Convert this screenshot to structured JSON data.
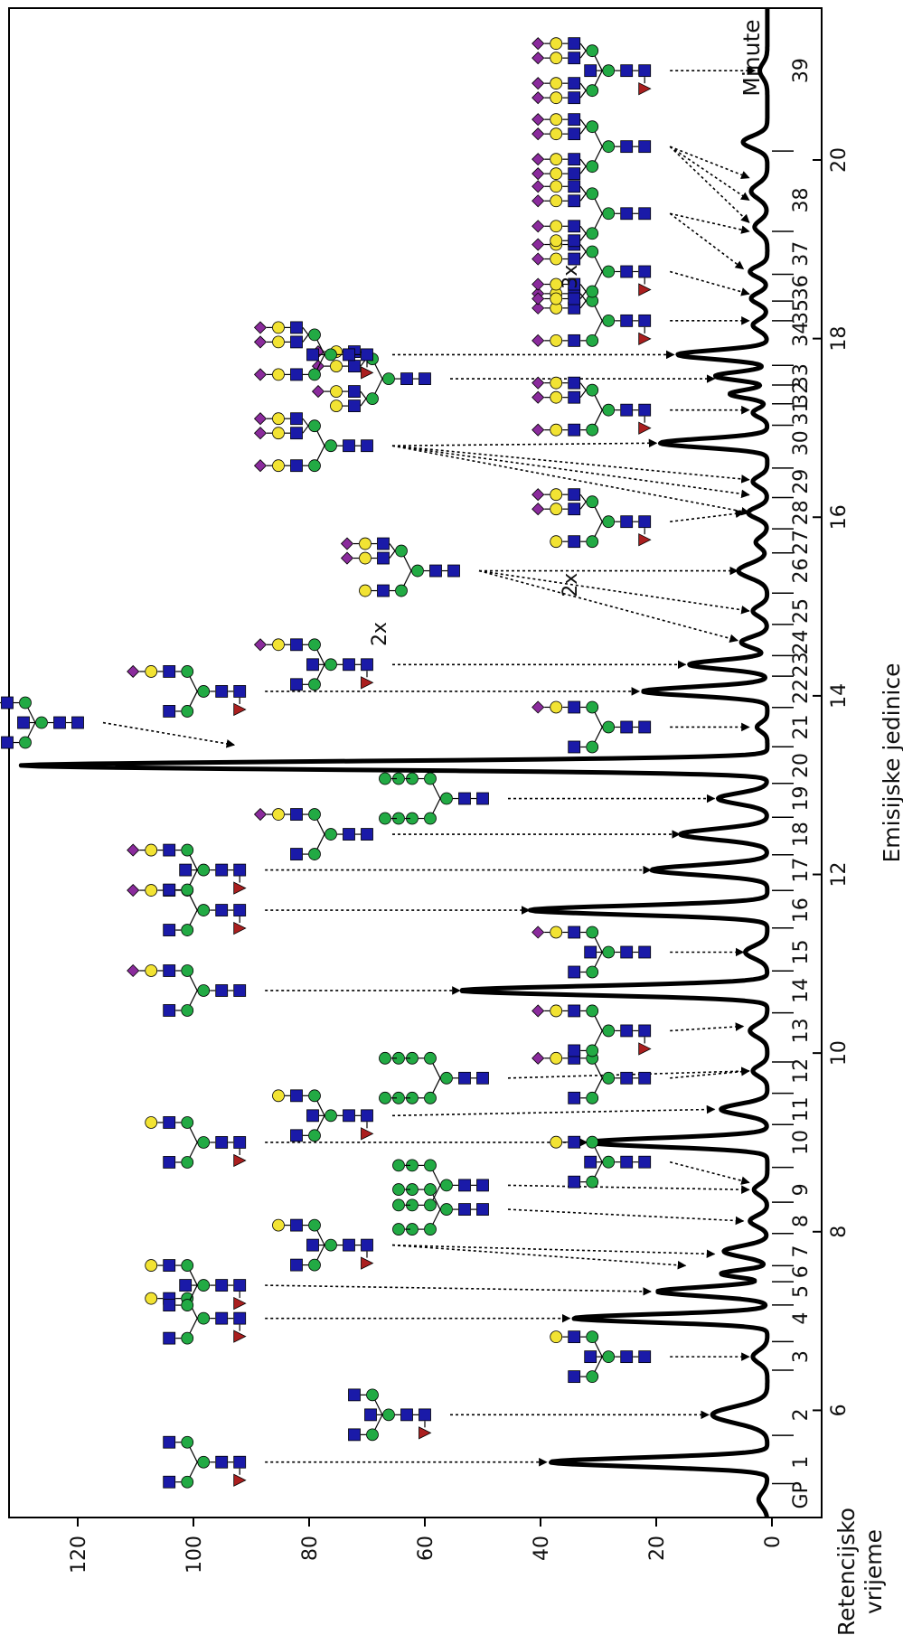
{
  "chart_data": {
    "type": "line",
    "ylabel": "Emisijske jedinice",
    "xlabel_lines": [
      "Retencijsko",
      "vrijeme"
    ],
    "x_unit_label": "Minute",
    "xlim": [
      4.8,
      21.7
    ],
    "ylim": [
      0,
      130
    ],
    "x_ticks": [
      6,
      8,
      10,
      12,
      14,
      16,
      18,
      20
    ],
    "y_ticks": [
      0,
      20,
      40,
      60,
      80,
      100,
      120
    ],
    "grid": false,
    "legend": "none",
    "line_color": "#000000",
    "peak_labels": [
      "GP",
      "1",
      "2",
      "3",
      "4",
      "5",
      "6",
      "7",
      "8",
      "9",
      "10",
      "11",
      "12",
      "13",
      "14",
      "15",
      "16",
      "17",
      "18",
      "19",
      "20",
      "21",
      "22",
      "23",
      "24",
      "25",
      "26",
      "27",
      "28",
      "29",
      "30",
      "31",
      "32",
      "33",
      "34",
      "35",
      "36",
      "37",
      "38",
      "39"
    ],
    "peak_label_x": [
      5.05,
      5.42,
      5.95,
      6.6,
      7.03,
      7.33,
      7.55,
      7.78,
      8.12,
      8.47,
      9.0,
      9.37,
      9.8,
      10.25,
      10.7,
      11.13,
      11.6,
      12.05,
      12.45,
      12.85,
      13.22,
      13.65,
      14.05,
      14.35,
      14.6,
      14.95,
      15.4,
      15.72,
      16.05,
      16.4,
      16.83,
      17.17,
      17.38,
      17.58,
      18.05,
      18.3,
      18.57,
      18.95,
      19.55,
      21.0
    ],
    "boundaries_x": [
      5.18,
      5.72,
      6.45,
      6.77,
      7.18,
      7.44,
      7.62,
      7.98,
      8.33,
      8.72,
      9.2,
      9.55,
      9.9,
      10.45,
      10.92,
      11.4,
      11.82,
      12.22,
      12.64,
      13.02,
      13.43,
      13.87,
      14.22,
      14.45,
      14.8,
      15.15,
      15.6,
      15.87,
      16.22,
      16.55,
      17.03,
      17.27,
      17.48,
      17.7,
      18.2,
      18.42,
      18.72,
      19.2,
      20.1
    ],
    "peaks": [
      {
        "x": 5.0,
        "y": 1.5,
        "w": 0.08
      },
      {
        "x": 5.42,
        "y": 37.5,
        "w": 0.05
      },
      {
        "x": 5.95,
        "y": 9.5,
        "w": 0.09
      },
      {
        "x": 6.6,
        "y": 2.5,
        "w": 0.07
      },
      {
        "x": 7.03,
        "y": 33.5,
        "w": 0.045
      },
      {
        "x": 7.33,
        "y": 19.0,
        "w": 0.05
      },
      {
        "x": 7.53,
        "y": 8.0,
        "w": 0.04
      },
      {
        "x": 7.78,
        "y": 7.5,
        "w": 0.06
      },
      {
        "x": 8.12,
        "y": 3.0,
        "w": 0.06
      },
      {
        "x": 8.47,
        "y": 2.3,
        "w": 0.06
      },
      {
        "x": 9.0,
        "y": 31.0,
        "w": 0.05
      },
      {
        "x": 9.37,
        "y": 8.0,
        "w": 0.06
      },
      {
        "x": 9.8,
        "y": 2.5,
        "w": 0.06
      },
      {
        "x": 10.25,
        "y": 3.0,
        "w": 0.07
      },
      {
        "x": 10.7,
        "y": 53.0,
        "w": 0.05
      },
      {
        "x": 11.13,
        "y": 3.8,
        "w": 0.07
      },
      {
        "x": 11.6,
        "y": 41.0,
        "w": 0.05
      },
      {
        "x": 12.05,
        "y": 20.0,
        "w": 0.055
      },
      {
        "x": 12.45,
        "y": 15.0,
        "w": 0.06
      },
      {
        "x": 12.85,
        "y": 8.5,
        "w": 0.06
      },
      {
        "x": 13.22,
        "y": 129.0,
        "w": 0.045
      },
      {
        "x": 13.65,
        "y": 1.8,
        "w": 0.05
      },
      {
        "x": 14.05,
        "y": 21.5,
        "w": 0.05
      },
      {
        "x": 14.35,
        "y": 13.5,
        "w": 0.05
      },
      {
        "x": 14.6,
        "y": 4.5,
        "w": 0.06
      },
      {
        "x": 14.95,
        "y": 2.5,
        "w": 0.06
      },
      {
        "x": 15.4,
        "y": 5.0,
        "w": 0.08
      },
      {
        "x": 15.72,
        "y": 2.0,
        "w": 0.06
      },
      {
        "x": 16.05,
        "y": 3.3,
        "w": 0.06
      },
      {
        "x": 16.4,
        "y": 2.5,
        "w": 0.06
      },
      {
        "x": 16.83,
        "y": 18.5,
        "w": 0.05
      },
      {
        "x": 17.17,
        "y": 2.5,
        "w": 0.05
      },
      {
        "x": 17.38,
        "y": 6.5,
        "w": 0.045
      },
      {
        "x": 17.58,
        "y": 9.0,
        "w": 0.045
      },
      {
        "x": 17.82,
        "y": 15.5,
        "w": 0.05
      },
      {
        "x": 18.15,
        "y": 2.5,
        "w": 0.06
      },
      {
        "x": 18.45,
        "y": 2.8,
        "w": 0.06
      },
      {
        "x": 18.75,
        "y": 3.0,
        "w": 0.06
      },
      {
        "x": 19.25,
        "y": 2.2,
        "w": 0.07
      },
      {
        "x": 19.65,
        "y": 2.8,
        "w": 0.08
      },
      {
        "x": 20.2,
        "y": 4.2,
        "w": 0.07
      },
      {
        "x": 21.0,
        "y": 1.3,
        "w": 0.08
      }
    ],
    "baseline_y": 0.8,
    "annotations": [
      {
        "id": "g1",
        "glycan": "fa2",
        "gx": 5.42,
        "gy": 92,
        "tx": 5.42,
        "ty": 38,
        "extra": []
      },
      {
        "id": "g2",
        "glycan": "fa2b",
        "gx": 5.95,
        "gy": 60,
        "tx": 5.95,
        "ty": 10,
        "extra": []
      },
      {
        "id": "g3",
        "glycan": "a2bg1",
        "gx": 6.6,
        "gy": 22,
        "tx": 6.6,
        "ty": 3,
        "extra": []
      },
      {
        "id": "g4",
        "glycan": "fa2g1",
        "gx": 7.03,
        "gy": 92,
        "tx": 7.03,
        "ty": 34,
        "extra": []
      },
      {
        "id": "g5",
        "glycan": "fa2g1b",
        "gx": 7.4,
        "gy": 92,
        "tx": 7.33,
        "ty": 20,
        "extra": []
      },
      {
        "id": "g7",
        "glycan": "fa2bg1",
        "gx": 7.85,
        "gy": 70,
        "tx": 7.75,
        "ty": 9,
        "extra": [
          [
            7.62,
            14
          ]
        ]
      },
      {
        "id": "g8",
        "glycan": "m6",
        "gx": 8.25,
        "gy": 50,
        "tx": 8.12,
        "ty": 4,
        "extra": []
      },
      {
        "id": "g9",
        "glycan": "m7",
        "gx": 8.52,
        "gy": 50,
        "tx": 8.47,
        "ty": 3,
        "extra": []
      },
      {
        "id": "g9b",
        "glycan": "a2bg1",
        "gx": 8.78,
        "gy": 22,
        "tx": 8.55,
        "ty": 3,
        "extra": []
      },
      {
        "id": "g10",
        "glycan": "fa2g2",
        "gx": 9.0,
        "gy": 92,
        "tx": 9.0,
        "ty": 31,
        "extra": []
      },
      {
        "id": "g11",
        "glycan": "fa2bg2",
        "gx": 9.3,
        "gy": 70,
        "tx": 9.37,
        "ty": 9,
        "extra": []
      },
      {
        "id": "g12a",
        "glycan": "m9",
        "gx": 9.72,
        "gy": 50,
        "tx": 9.8,
        "ty": 3,
        "extra": []
      },
      {
        "id": "g12b",
        "glycan": "a2g1s1",
        "gx": 9.72,
        "gy": 22,
        "tx": 9.8,
        "ty": 3,
        "extra": []
      },
      {
        "id": "g13",
        "glycan": "fa2g1s1",
        "gx": 10.25,
        "gy": 22,
        "tx": 10.3,
        "ty": 4,
        "extra": []
      },
      {
        "id": "g14",
        "glycan": "a2g2s1",
        "gx": 10.7,
        "gy": 92,
        "tx": 10.7,
        "ty": 53,
        "extra": []
      },
      {
        "id": "g15",
        "glycan": "a2bg2s1",
        "gx": 11.13,
        "gy": 22,
        "tx": 11.13,
        "ty": 4,
        "extra": []
      },
      {
        "id": "g16",
        "glycan": "fa2g2s1",
        "gx": 11.6,
        "gy": 92,
        "tx": 11.6,
        "ty": 41,
        "extra": []
      },
      {
        "id": "g17",
        "glycan": "fa2bg2s1",
        "gx": 12.05,
        "gy": 92,
        "tx": 12.05,
        "ty": 20,
        "extra": []
      },
      {
        "id": "g18",
        "glycan": "a2g2s2",
        "gx": 12.45,
        "gy": 70,
        "tx": 12.45,
        "ty": 15,
        "extra": []
      },
      {
        "id": "g19",
        "glycan": "m8",
        "gx": 12.85,
        "gy": 50,
        "tx": 12.85,
        "ty": 9,
        "extra": []
      },
      {
        "id": "g20",
        "glycan": "a2bg2s2",
        "gx": 13.7,
        "gy": 120,
        "tx": 13.45,
        "ty": 92,
        "extra": []
      },
      {
        "id": "g21",
        "glycan": "a2g2s2",
        "gx": 13.65,
        "gy": 22,
        "tx": 13.65,
        "ty": 3,
        "extra": []
      },
      {
        "id": "g22",
        "glycan": "fa2g2s2",
        "gx": 14.05,
        "gy": 92,
        "tx": 14.05,
        "ty": 22,
        "extra": []
      },
      {
        "id": "g23",
        "glycan": "fa2bg2s2",
        "gx": 14.35,
        "gy": 70,
        "tx": 14.35,
        "ty": 14,
        "extra": []
      },
      {
        "id": "g26",
        "glycan": "a3g3s2",
        "gx": 15.4,
        "gy": 55,
        "tx": 15.4,
        "ty": 5,
        "extra": [
          [
            14.95,
            3
          ],
          [
            14.62,
            5
          ]
        ]
      },
      {
        "id": "g27",
        "glycan": "fa3g3s2",
        "gx": 15.95,
        "gy": 22,
        "tx": 16.05,
        "ty": 4,
        "extra": []
      },
      {
        "id": "g30",
        "glycan": "a3g3s3",
        "gx": 16.8,
        "gy": 70,
        "tx": 16.83,
        "ty": 19,
        "extra": [
          [
            16.42,
            3
          ],
          [
            16.25,
            3
          ],
          [
            16.05,
            3
          ]
        ]
      },
      {
        "id": "g31",
        "glycan": "fa3g3s3",
        "gx": 17.2,
        "gy": 22,
        "tx": 17.2,
        "ty": 3,
        "extra": []
      },
      {
        "id": "g32",
        "glycan": "a4g4s3",
        "gx": 17.55,
        "gy": 60,
        "tx": 17.55,
        "ty": 9,
        "extra": []
      },
      {
        "id": "g33",
        "glycan": "fa3g3s3b",
        "gx": 17.82,
        "gy": 70,
        "tx": 17.82,
        "ty": 16,
        "extra": []
      },
      {
        "id": "g34",
        "glycan": "fa3g3s3",
        "gx": 18.2,
        "gy": 22,
        "tx": 18.2,
        "ty": 3,
        "extra": []
      },
      {
        "id": "g36",
        "glycan": "fa4g4s4",
        "gx": 18.75,
        "gy": 22,
        "tx": 18.5,
        "ty": 3,
        "extra": []
      },
      {
        "id": "g37",
        "glycan": "a4g4s3x",
        "gx": 19.4,
        "gy": 22,
        "tx": 18.78,
        "ty": 4,
        "extra": [
          [
            19.2,
            3
          ]
        ]
      },
      {
        "id": "g38",
        "glycan": "a4g4s4",
        "gx": 20.15,
        "gy": 22,
        "tx": 19.55,
        "ty": 3,
        "extra": [
          [
            19.8,
            3
          ],
          [
            19.3,
            3
          ]
        ]
      },
      {
        "id": "g39",
        "glycan": "fa4g4s4b",
        "gx": 21.0,
        "gy": 22,
        "tx": 21.0,
        "ty": 2,
        "extra": []
      }
    ],
    "glycan_extras": {
      "g26": "2x",
      "g27": "2x",
      "g37": "3x"
    },
    "colors": {
      "glcnac": "#1a1aa8",
      "mannose": "#22aa44",
      "galactose": "#f2e333",
      "sialic": "#8a2b9c",
      "fucose": "#aa1f1f"
    }
  }
}
